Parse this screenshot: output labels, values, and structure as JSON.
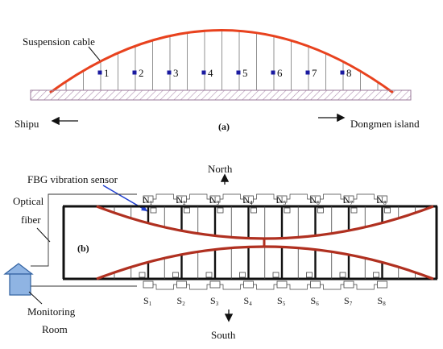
{
  "panel_a": {
    "label": "(a)",
    "cable_label": "Suspension cable",
    "sensor_numbers": [
      "1",
      "2",
      "3",
      "4",
      "5",
      "6",
      "7",
      "8"
    ],
    "left_direction": "Shipu",
    "right_direction": "Dongmen island"
  },
  "panel_b": {
    "label": "(b)",
    "sensor_label": "FBG vibration sensor",
    "optical_label_line1": "Optical",
    "optical_label_line2": "fiber",
    "room_label_line1": "Monitoring",
    "room_label_line2": "Room",
    "north": "North",
    "south": "South",
    "north_sensors": [
      "1",
      "2",
      "3",
      "4",
      "5",
      "6",
      "7",
      "8"
    ],
    "south_sensors": [
      "1",
      "2",
      "3",
      "4",
      "5",
      "6",
      "7",
      "8"
    ],
    "north_prefix": "N",
    "south_prefix": "S"
  },
  "colors": {
    "arch": "#e8421e",
    "cable_red": "#b03020",
    "sensor_square": "#1a1aa0",
    "room_fill": "#8fb4e3",
    "room_stroke": "#3060a0",
    "pointer": "#2040d0",
    "deck_hatch": "#c0a0c0"
  }
}
